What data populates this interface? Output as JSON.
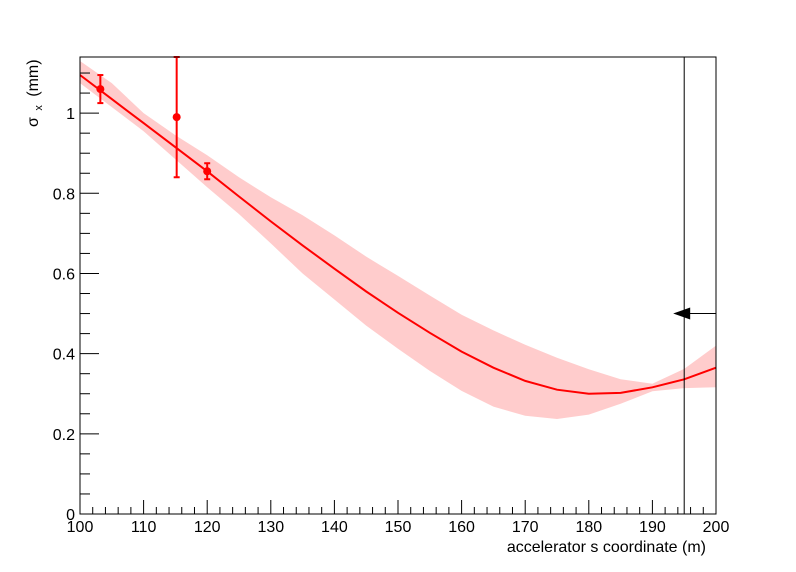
{
  "chart_data": {
    "type": "scatter",
    "title": "",
    "xlabel": "accelerator s coordinate (m)",
    "ylabel": {
      "main": "σ",
      "sub": "x",
      "unit": "(mm)"
    },
    "xlim": [
      100,
      200
    ],
    "ylim": [
      0,
      1.14
    ],
    "x_ticks": [
      100,
      110,
      120,
      130,
      140,
      150,
      160,
      170,
      180,
      190,
      200
    ],
    "y_ticks": [
      0,
      0.2,
      0.4,
      0.6,
      0.8,
      1
    ],
    "y_tick_labels": [
      "0",
      "0.2",
      "0.4",
      "0.6",
      "0.8",
      "1"
    ],
    "grid": false,
    "colors": {
      "fit": "#ff0000",
      "band": "#ffcccc",
      "marker": "#000000"
    },
    "points": [
      {
        "x": 103.2,
        "y": 1.06,
        "yerr": 0.035
      },
      {
        "x": 115.2,
        "y": 0.99,
        "yerr": 0.15
      },
      {
        "x": 120.0,
        "y": 0.855,
        "yerr": 0.02
      }
    ],
    "fit_curve": {
      "x": [
        100,
        105,
        110,
        115,
        120,
        125,
        130,
        135,
        140,
        145,
        150,
        155,
        160,
        165,
        170,
        175,
        180,
        185,
        190,
        195,
        200
      ],
      "y": [
        1.095,
        1.035,
        0.975,
        0.915,
        0.855,
        0.792,
        0.73,
        0.67,
        0.612,
        0.555,
        0.502,
        0.452,
        0.405,
        0.365,
        0.332,
        0.31,
        0.3,
        0.302,
        0.316,
        0.336,
        0.365
      ]
    },
    "band": {
      "x": [
        100,
        105,
        110,
        115,
        120,
        125,
        130,
        135,
        140,
        145,
        150,
        155,
        160,
        165,
        170,
        175,
        180,
        185,
        190,
        195,
        200
      ],
      "lower": [
        1.075,
        1.015,
        0.955,
        0.885,
        0.815,
        0.748,
        0.675,
        0.6,
        0.535,
        0.47,
        0.412,
        0.357,
        0.307,
        0.268,
        0.245,
        0.237,
        0.248,
        0.275,
        0.306,
        0.314,
        0.316
      ],
      "upper": [
        1.13,
        1.075,
        1.0,
        0.945,
        0.895,
        0.84,
        0.79,
        0.745,
        0.695,
        0.642,
        0.594,
        0.545,
        0.497,
        0.458,
        0.422,
        0.39,
        0.361,
        0.336,
        0.325,
        0.362,
        0.42
      ]
    },
    "marker": {
      "s": 195,
      "arrow_y": 0.5,
      "arrow_direction": "left"
    }
  }
}
